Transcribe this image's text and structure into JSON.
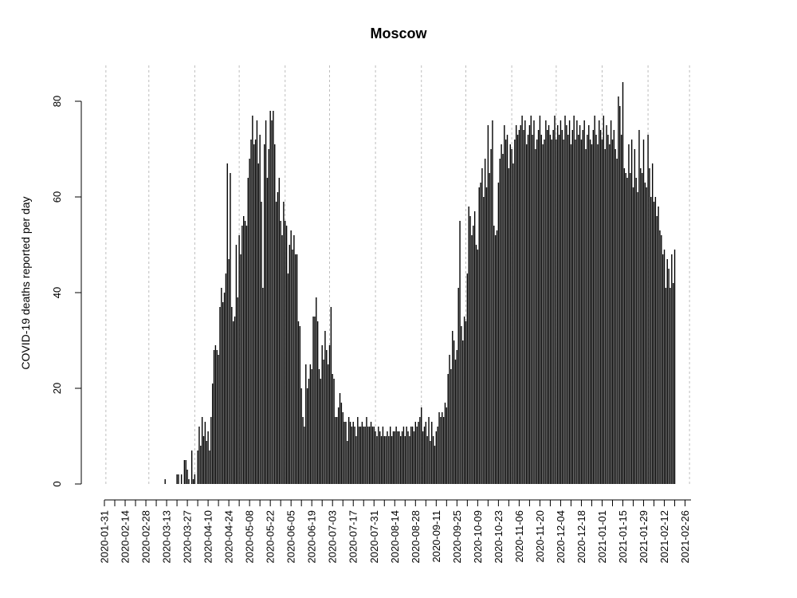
{
  "chart_data": {
    "type": "bar",
    "title": "Moscow",
    "xlabel": "",
    "ylabel": "COVID-19 deaths reported per day",
    "ylim": [
      0,
      80
    ],
    "y_ticks": [
      "0",
      "20",
      "40",
      "60",
      "80"
    ],
    "x_start": "2020-01-31",
    "x_end": "2021-03-02",
    "x_tick_labels": [
      "2020-01-31",
      "2020-02-14",
      "2020-02-28",
      "2020-03-13",
      "2020-03-27",
      "2020-04-10",
      "2020-04-24",
      "2020-05-08",
      "2020-05-22",
      "2020-06-05",
      "2020-06-19",
      "2020-07-03",
      "2020-07-17",
      "2020-07-31",
      "2020-08-14",
      "2020-08-28",
      "2020-09-11",
      "2020-09-25",
      "2020-10-09",
      "2020-10-23",
      "2020-11-06",
      "2020-11-20",
      "2020-12-04",
      "2020-12-18",
      "2021-01-01",
      "2021-01-15",
      "2021-01-29",
      "2021-02-12",
      "2021-02-26"
    ],
    "grid": "vertical dotted lines",
    "legend": "none",
    "colors": {
      "bar": "#000000",
      "grid": "#bebebe",
      "axis": "#000000"
    },
    "values": [
      0,
      0,
      0,
      0,
      0,
      0,
      0,
      0,
      0,
      0,
      0,
      0,
      0,
      0,
      0,
      0,
      0,
      0,
      0,
      0,
      0,
      0,
      0,
      0,
      0,
      0,
      0,
      0,
      0,
      0,
      0,
      0,
      0,
      0,
      0,
      0,
      0,
      0,
      0,
      0,
      0,
      1,
      0,
      0,
      0,
      0,
      0,
      0,
      0,
      2,
      2,
      0,
      2,
      0,
      5,
      5,
      3,
      1,
      0,
      7,
      1,
      2,
      0,
      7,
      12,
      8,
      14,
      10,
      13,
      9,
      11,
      7,
      14,
      21,
      28,
      29,
      28,
      27,
      37,
      41,
      38,
      40,
      44,
      67,
      47,
      65,
      37,
      34,
      35,
      50,
      39,
      52,
      48,
      54,
      56,
      55,
      54,
      64,
      68,
      72,
      77,
      71,
      72,
      76,
      67,
      73,
      59,
      41,
      71,
      76,
      64,
      70,
      78,
      76,
      78,
      71,
      59,
      61,
      64,
      55,
      52,
      59,
      55,
      54,
      44,
      50,
      53,
      49,
      52,
      48,
      48,
      34,
      33,
      20,
      14,
      12,
      25,
      20,
      22,
      25,
      24,
      35,
      35,
      39,
      34,
      24,
      22,
      29,
      26,
      32,
      28,
      25,
      29,
      37,
      23,
      22,
      14,
      14,
      16,
      19,
      17,
      15,
      13,
      13,
      9,
      14,
      13,
      12,
      13,
      12,
      10,
      14,
      12,
      12,
      13,
      12,
      12,
      14,
      12,
      12,
      13,
      12,
      12,
      11,
      10,
      12,
      11,
      10,
      12,
      10,
      10,
      11,
      10,
      12,
      10,
      11,
      11,
      12,
      11,
      11,
      10,
      11,
      12,
      10,
      12,
      11,
      10,
      12,
      12,
      11,
      13,
      12,
      13,
      14,
      16,
      11,
      12,
      13,
      10,
      14,
      9,
      13,
      10,
      8,
      11,
      12,
      15,
      14,
      15,
      14,
      17,
      16,
      23,
      27,
      24,
      32,
      30,
      26,
      28,
      41,
      55,
      33,
      30,
      35,
      34,
      44,
      58,
      56,
      52,
      54,
      57,
      50,
      49,
      62,
      63,
      66,
      60,
      68,
      62,
      75,
      65,
      70,
      76,
      54,
      52,
      53,
      63,
      68,
      71,
      69,
      75,
      72,
      73,
      66,
      71,
      70,
      67,
      72,
      75,
      73,
      74,
      75,
      77,
      74,
      76,
      71,
      73,
      75,
      77,
      73,
      76,
      70,
      72,
      74,
      77,
      73,
      71,
      72,
      76,
      74,
      75,
      73,
      72,
      74,
      77,
      72,
      75,
      73,
      76,
      74,
      72,
      77,
      75,
      73,
      76,
      71,
      74,
      77,
      72,
      76,
      73,
      75,
      72,
      74,
      76,
      70,
      73,
      75,
      72,
      71,
      74,
      77,
      73,
      71,
      76,
      74,
      72,
      77,
      70,
      75,
      73,
      71,
      76,
      72,
      74,
      70,
      68,
      81,
      79,
      73,
      84,
      66,
      65,
      64,
      71,
      65,
      72,
      62,
      70,
      64,
      61,
      74,
      66,
      65,
      72,
      63,
      62,
      73,
      66,
      60,
      67,
      59,
      60,
      56,
      58,
      53,
      52,
      48,
      49,
      41,
      47,
      45,
      41,
      48,
      42,
      49
    ]
  }
}
